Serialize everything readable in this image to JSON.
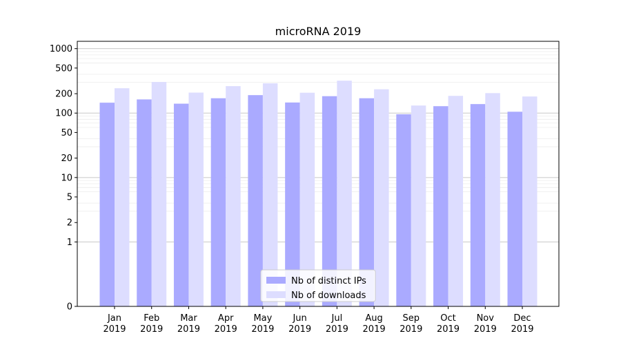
{
  "chart_data": {
    "type": "bar",
    "title": "microRNA 2019",
    "xlabel": "",
    "ylabel": "",
    "yscale": "symlog",
    "ylim": [
      0,
      1300
    ],
    "grid": true,
    "legend_position": "bottom-center",
    "categories": [
      [
        "Jan",
        "2019"
      ],
      [
        "Feb",
        "2019"
      ],
      [
        "Mar",
        "2019"
      ],
      [
        "Apr",
        "2019"
      ],
      [
        "May",
        "2019"
      ],
      [
        "Jun",
        "2019"
      ],
      [
        "Jul",
        "2019"
      ],
      [
        "Aug",
        "2019"
      ],
      [
        "Sep",
        "2019"
      ],
      [
        "Oct",
        "2019"
      ],
      [
        "Nov",
        "2019"
      ],
      [
        "Dec",
        "2019"
      ]
    ],
    "yticks": [
      0,
      1,
      2,
      5,
      10,
      20,
      50,
      100,
      200,
      500,
      1000
    ],
    "ytick_labels": [
      "0",
      "1",
      "2",
      "5",
      "10",
      "20",
      "50",
      "100",
      "200",
      "500",
      "1000"
    ],
    "series": [
      {
        "name": "Nb of distinct IPs",
        "color": "#aaaaff",
        "values": [
          145,
          163,
          140,
          170,
          190,
          146,
          183,
          170,
          96,
          128,
          138,
          105
        ]
      },
      {
        "name": "Nb of downloads",
        "color": "#ddddff",
        "values": [
          243,
          304,
          208,
          262,
          290,
          207,
          318,
          234,
          131,
          185,
          204,
          181
        ]
      }
    ]
  }
}
